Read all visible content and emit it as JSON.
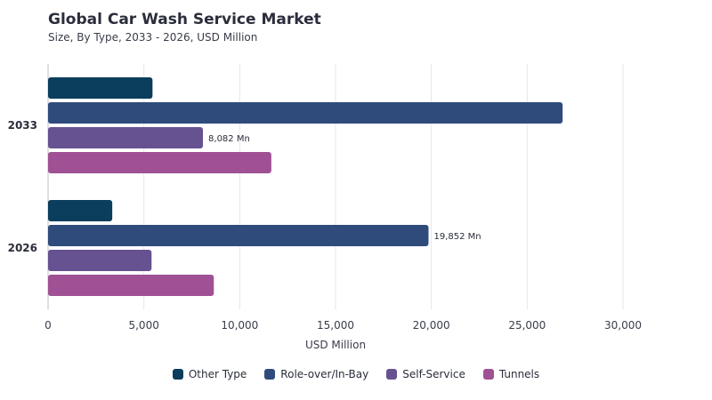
{
  "chart_data": {
    "type": "bar",
    "orientation": "horizontal",
    "title": "Global Car Wash Service Market",
    "subtitle": "Size, By Type, 2033 - 2026, USD Million",
    "xlabel": "USD Million",
    "ylabel": "",
    "xlim": [
      0,
      30000
    ],
    "xticks": [
      "0",
      "5,000",
      "10,000",
      "15,000",
      "20,000",
      "25,000",
      "30,000"
    ],
    "categories": [
      "2033",
      "2026"
    ],
    "series": [
      {
        "name": "Other Type",
        "color": "#0b3d5c",
        "values": [
          5450,
          3350
        ]
      },
      {
        "name": "Role-over/In-Bay",
        "color": "#2f4b7c",
        "values": [
          26850,
          19852
        ]
      },
      {
        "name": "Self-Service",
        "color": "#665191",
        "values": [
          8082,
          5400
        ]
      },
      {
        "name": "Tunnels",
        "color": "#a05195",
        "values": [
          11650,
          8650
        ]
      }
    ],
    "data_labels": [
      {
        "category": "2033",
        "series": "Self-Service",
        "text": "8,082 Mn"
      },
      {
        "category": "2026",
        "series": "Role-over/In-Bay",
        "text": "19,852 Mn"
      }
    ],
    "grid": "vertical",
    "legend_position": "bottom"
  }
}
